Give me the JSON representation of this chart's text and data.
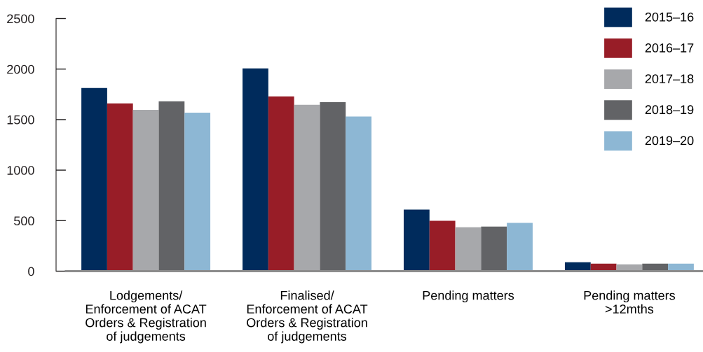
{
  "chart_data": {
    "type": "bar",
    "categories": [
      "Lodgements/\nEnforcement of ACAT\nOrders & Registration\nof judgements",
      "Finalised/\nEnforcement of ACAT\nOrders & Registration\nof judgements",
      "Pending matters",
      "Pending matters\n>12mths"
    ],
    "series": [
      {
        "name": "2015–16",
        "color": "#002b5c",
        "values": [
          1812,
          2007,
          609,
          88
        ]
      },
      {
        "name": "2016–17",
        "color": "#981d27",
        "values": [
          1661,
          1730,
          498,
          74
        ]
      },
      {
        "name": "2017–18",
        "color": "#a7a8ab",
        "values": [
          1597,
          1646,
          435,
          67
        ]
      },
      {
        "name": "2018–19",
        "color": "#626366",
        "values": [
          1681,
          1673,
          442,
          74
        ]
      },
      {
        "name": "2019–20",
        "color": "#8db7d4",
        "values": [
          1569,
          1530,
          477,
          74
        ]
      }
    ],
    "ylim": [
      0,
      2500
    ],
    "yticks": [
      0,
      500,
      1000,
      1500,
      2000,
      2500
    ],
    "grid": false,
    "legend": "top right"
  }
}
